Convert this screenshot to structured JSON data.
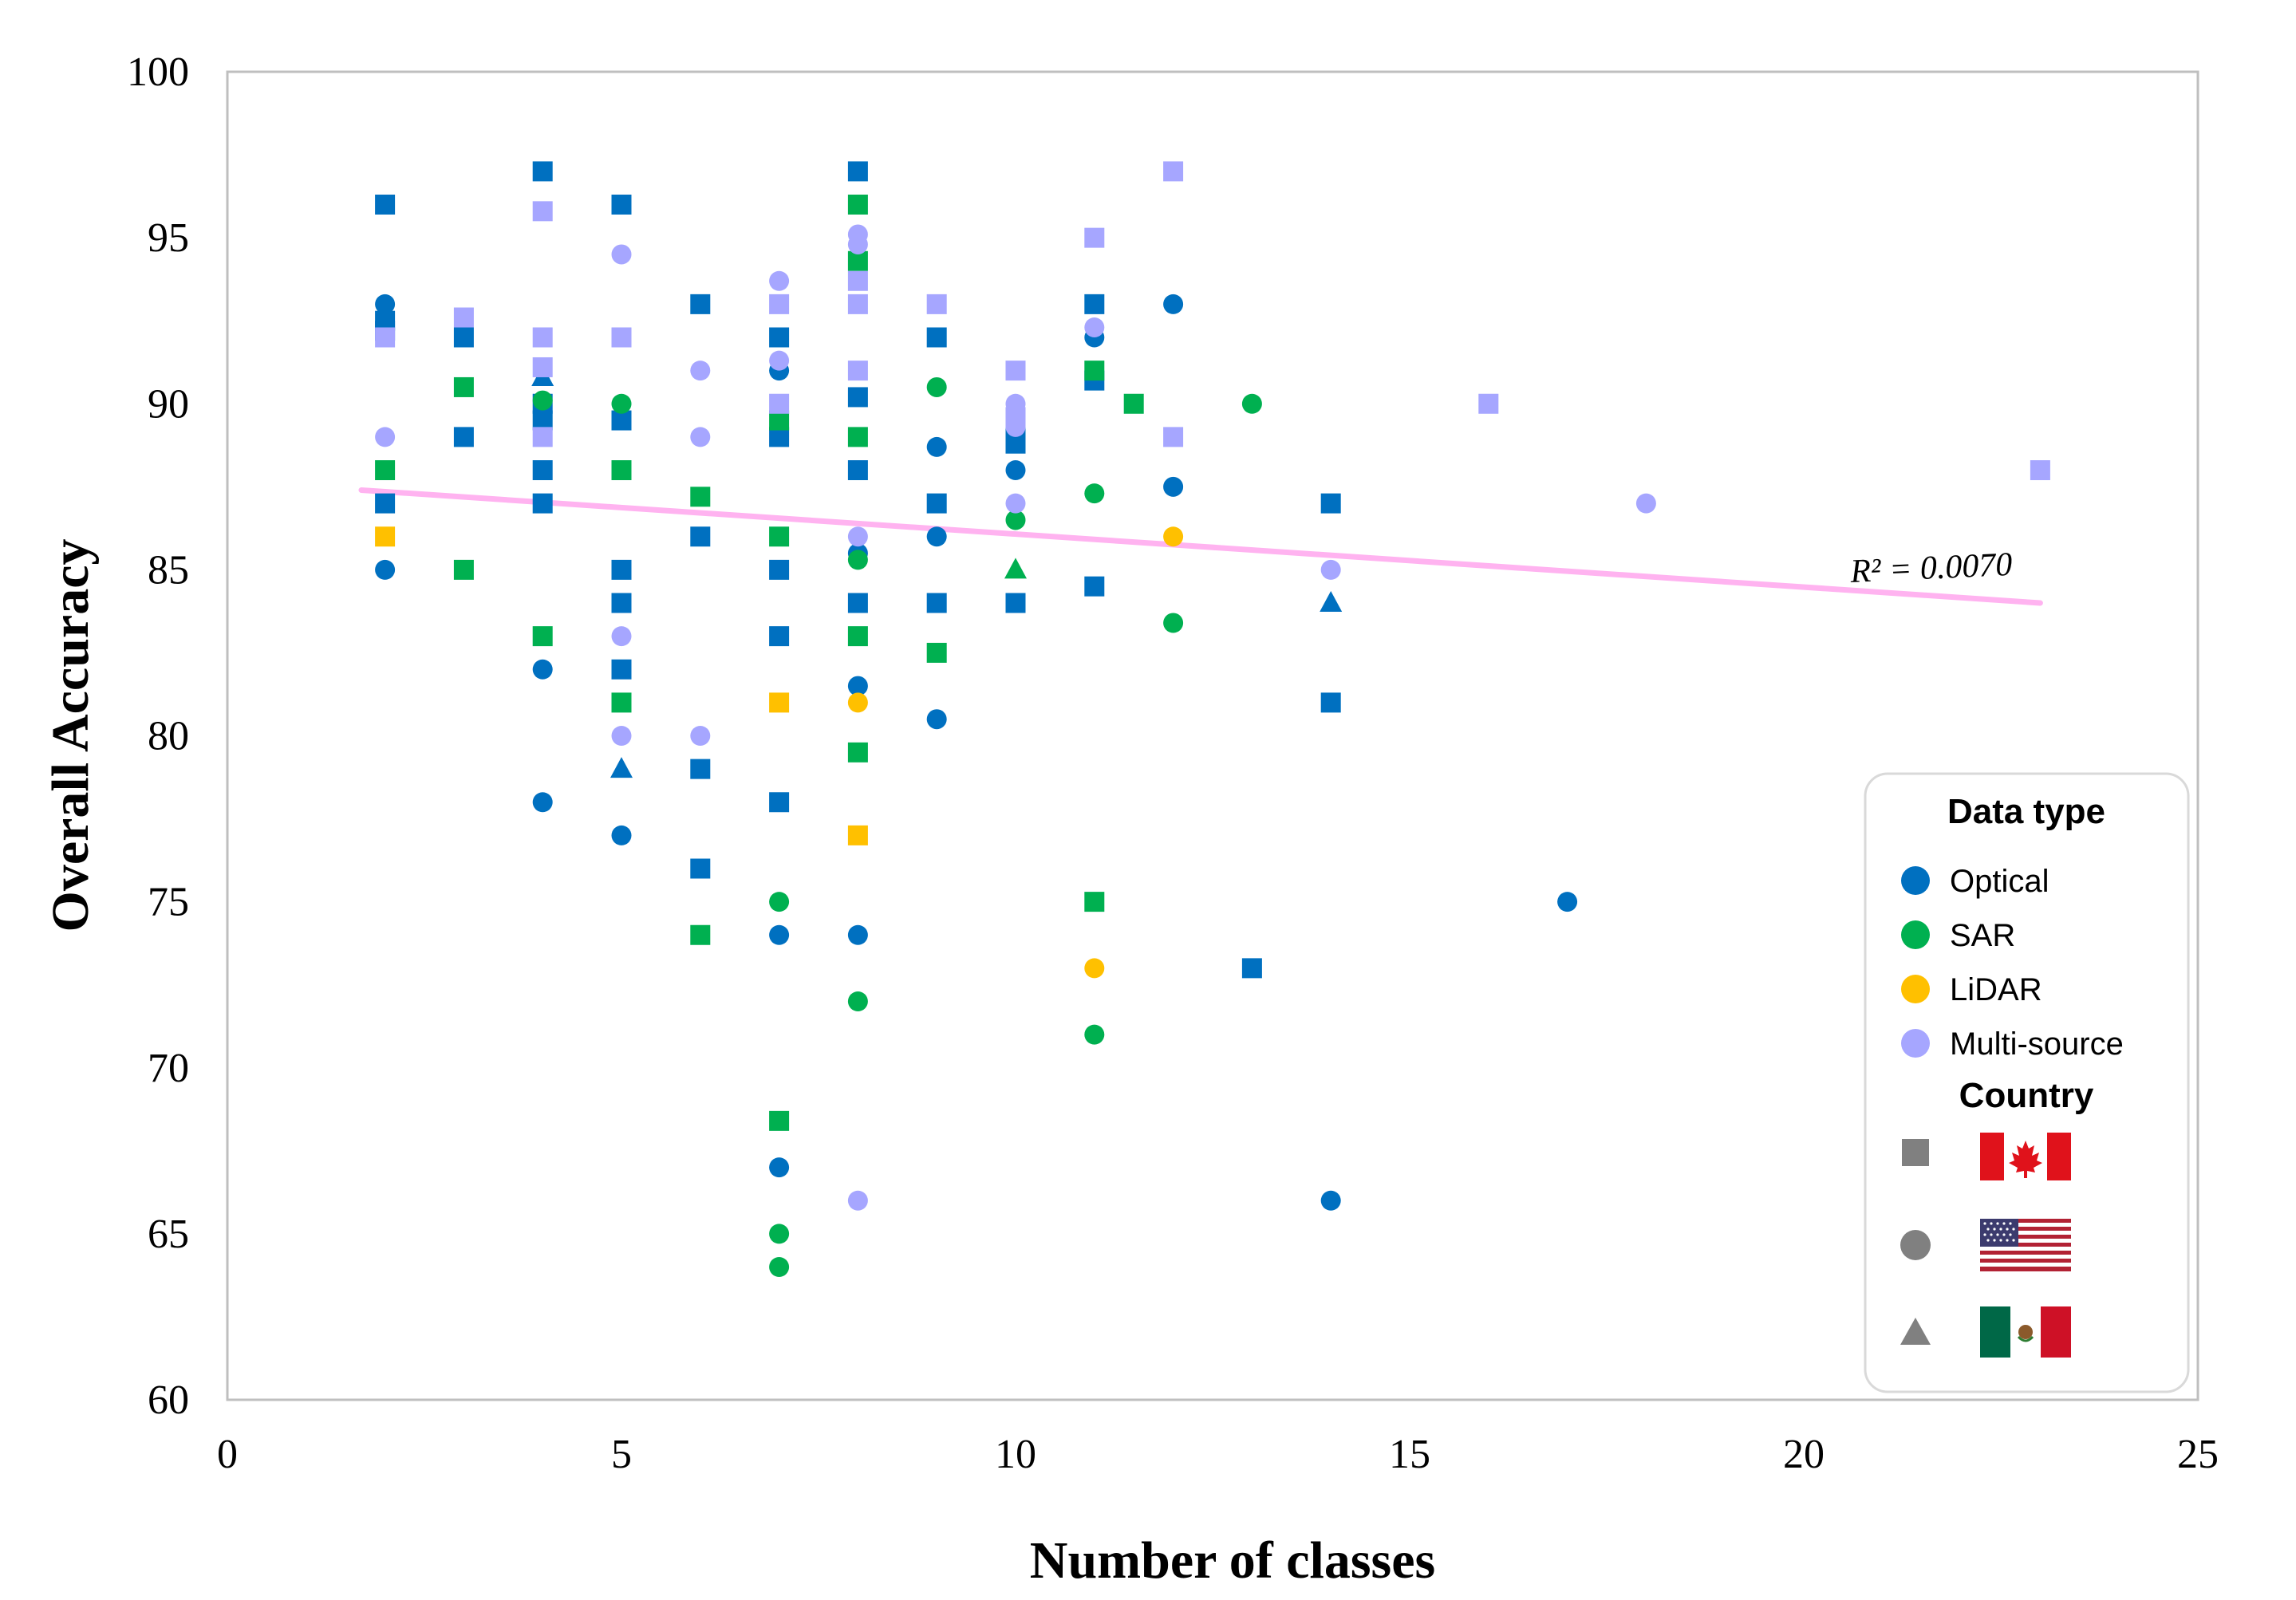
{
  "chart_data": {
    "type": "scatter",
    "xlabel": "Number of classes",
    "ylabel": "Overall Accuracy",
    "xlim": [
      0,
      25
    ],
    "ylim": [
      60,
      100
    ],
    "xticks": [
      0,
      5,
      10,
      15,
      20,
      25
    ],
    "yticks": [
      60,
      65,
      70,
      75,
      80,
      85,
      90,
      95,
      100
    ],
    "grid": false,
    "legend_position": "bottom-right",
    "legend": {
      "data_type_title": "Data type",
      "data_types": [
        {
          "label": "Optical",
          "color": "#0070C0"
        },
        {
          "label": "SAR",
          "color": "#00B050"
        },
        {
          "label": "LiDAR",
          "color": "#FFC000"
        },
        {
          "label": "Multi-source",
          "color": "#A6A6FF"
        }
      ],
      "country_title": "Country",
      "countries": [
        {
          "marker": "square",
          "flag": "canada-flag"
        },
        {
          "marker": "circle",
          "flag": "usa-flag"
        },
        {
          "marker": "triangle",
          "flag": "mexico-flag"
        }
      ]
    },
    "trendline": {
      "x": [
        1.7,
        23
      ],
      "y": [
        87.4,
        84.0
      ],
      "color": "#FFB3F0",
      "label": "R² = 0.0070"
    },
    "series": [
      {
        "name": "Optical",
        "color": "#0070C0",
        "points": [
          [
            2,
            96,
            "square"
          ],
          [
            2,
            92.5,
            "square"
          ],
          [
            2,
            92.2,
            "square"
          ],
          [
            2,
            87,
            "square"
          ],
          [
            2,
            93,
            "circle"
          ],
          [
            2,
            85,
            "circle"
          ],
          [
            3,
            92,
            "square"
          ],
          [
            3,
            89,
            "square"
          ],
          [
            4,
            97,
            "square"
          ],
          [
            4,
            90.8,
            "triangle"
          ],
          [
            4,
            90,
            "square"
          ],
          [
            4,
            89.5,
            "square"
          ],
          [
            4,
            88,
            "square"
          ],
          [
            4,
            87,
            "square"
          ],
          [
            4,
            82,
            "circle"
          ],
          [
            4,
            78,
            "circle"
          ],
          [
            5,
            96,
            "square"
          ],
          [
            5,
            89.5,
            "square"
          ],
          [
            5,
            85,
            "square"
          ],
          [
            5,
            84,
            "square"
          ],
          [
            5,
            82,
            "square"
          ],
          [
            5,
            79,
            "triangle"
          ],
          [
            5,
            77,
            "circle"
          ],
          [
            6,
            93,
            "square"
          ],
          [
            6,
            86,
            "square"
          ],
          [
            6,
            79,
            "square"
          ],
          [
            6,
            76,
            "square"
          ],
          [
            7,
            92,
            "square"
          ],
          [
            7,
            91,
            "circle"
          ],
          [
            7,
            89,
            "square"
          ],
          [
            7,
            85,
            "square"
          ],
          [
            7,
            83,
            "square"
          ],
          [
            7,
            78,
            "square"
          ],
          [
            7,
            74,
            "circle"
          ],
          [
            7,
            67,
            "circle"
          ],
          [
            8,
            97,
            "square"
          ],
          [
            8,
            90.2,
            "square"
          ],
          [
            8,
            88,
            "square"
          ],
          [
            8,
            85.5,
            "circle"
          ],
          [
            8,
            84,
            "square"
          ],
          [
            8,
            81.5,
            "circle"
          ],
          [
            8,
            74,
            "circle"
          ],
          [
            9,
            92,
            "square"
          ],
          [
            9,
            88.7,
            "circle"
          ],
          [
            9,
            87,
            "square"
          ],
          [
            9,
            86,
            "circle"
          ],
          [
            9,
            84,
            "square"
          ],
          [
            9,
            80.5,
            "circle"
          ],
          [
            10,
            89,
            "square"
          ],
          [
            10,
            88.8,
            "square"
          ],
          [
            10,
            88,
            "circle"
          ],
          [
            10,
            84,
            "square"
          ],
          [
            11,
            93,
            "square"
          ],
          [
            11,
            92,
            "circle"
          ],
          [
            11,
            90.7,
            "square"
          ],
          [
            11,
            84.5,
            "square"
          ],
          [
            12,
            93,
            "circle"
          ],
          [
            12,
            87.5,
            "circle"
          ],
          [
            13,
            73,
            "square"
          ],
          [
            14,
            87,
            "square"
          ],
          [
            14,
            84,
            "triangle"
          ],
          [
            14,
            81,
            "square"
          ],
          [
            14,
            66,
            "circle"
          ],
          [
            17,
            75,
            "circle"
          ]
        ]
      },
      {
        "name": "SAR",
        "color": "#00B050",
        "points": [
          [
            2,
            88,
            "square"
          ],
          [
            3,
            90.5,
            "square"
          ],
          [
            3,
            85,
            "square"
          ],
          [
            4,
            90.1,
            "circle"
          ],
          [
            4,
            83,
            "square"
          ],
          [
            5,
            90,
            "circle"
          ],
          [
            5,
            88,
            "square"
          ],
          [
            5,
            81,
            "square"
          ],
          [
            6,
            87.2,
            "square"
          ],
          [
            6,
            74,
            "square"
          ],
          [
            7,
            89.5,
            "square"
          ],
          [
            7,
            86,
            "square"
          ],
          [
            7,
            75,
            "circle"
          ],
          [
            7,
            68.4,
            "square"
          ],
          [
            7,
            65,
            "circle"
          ],
          [
            7,
            64,
            "circle"
          ],
          [
            8,
            96,
            "square"
          ],
          [
            8,
            94.3,
            "square"
          ],
          [
            8,
            89,
            "square"
          ],
          [
            8,
            85.3,
            "circle"
          ],
          [
            8,
            83,
            "square"
          ],
          [
            8,
            79.5,
            "square"
          ],
          [
            8,
            72,
            "circle"
          ],
          [
            9,
            90.5,
            "circle"
          ],
          [
            9,
            82.5,
            "square"
          ],
          [
            10,
            86.5,
            "circle"
          ],
          [
            10,
            85,
            "triangle"
          ],
          [
            11,
            91,
            "square"
          ],
          [
            11,
            87.3,
            "circle"
          ],
          [
            11,
            75,
            "square"
          ],
          [
            11,
            71,
            "circle"
          ],
          [
            11.5,
            90,
            "square"
          ],
          [
            12,
            83.4,
            "circle"
          ],
          [
            13,
            90,
            "circle"
          ]
        ]
      },
      {
        "name": "LiDAR",
        "color": "#FFC000",
        "points": [
          [
            2,
            86,
            "square"
          ],
          [
            7,
            81,
            "square"
          ],
          [
            8,
            81,
            "circle"
          ],
          [
            8,
            77,
            "square"
          ],
          [
            11,
            73,
            "circle"
          ],
          [
            12,
            86,
            "circle"
          ]
        ]
      },
      {
        "name": "Multi-source",
        "color": "#A6A6FF",
        "points": [
          [
            2,
            92,
            "square"
          ],
          [
            2,
            89,
            "circle"
          ],
          [
            3,
            92.6,
            "square"
          ],
          [
            4,
            95.8,
            "square"
          ],
          [
            4,
            92,
            "square"
          ],
          [
            4,
            91.1,
            "square"
          ],
          [
            4,
            89,
            "square"
          ],
          [
            5,
            94.5,
            "circle"
          ],
          [
            5,
            92,
            "square"
          ],
          [
            5,
            83,
            "circle"
          ],
          [
            5,
            80,
            "circle"
          ],
          [
            6,
            91,
            "circle"
          ],
          [
            6,
            89,
            "circle"
          ],
          [
            6,
            80,
            "circle"
          ],
          [
            7,
            93.7,
            "circle"
          ],
          [
            7,
            93,
            "square"
          ],
          [
            7,
            91.3,
            "circle"
          ],
          [
            7,
            90,
            "square"
          ],
          [
            8,
            95.1,
            "circle"
          ],
          [
            8,
            94.8,
            "circle"
          ],
          [
            8,
            93.7,
            "square"
          ],
          [
            8,
            93,
            "square"
          ],
          [
            8,
            91,
            "square"
          ],
          [
            8,
            86,
            "circle"
          ],
          [
            8,
            66,
            "circle"
          ],
          [
            9,
            93,
            "square"
          ],
          [
            10,
            91,
            "square"
          ],
          [
            10,
            90,
            "circle"
          ],
          [
            10,
            89.6,
            "square"
          ],
          [
            10,
            89.3,
            "circle"
          ],
          [
            10,
            87,
            "circle"
          ],
          [
            11,
            95,
            "square"
          ],
          [
            11,
            92.3,
            "circle"
          ],
          [
            12,
            97,
            "square"
          ],
          [
            12,
            89,
            "square"
          ],
          [
            14,
            85,
            "circle"
          ],
          [
            16,
            90,
            "square"
          ],
          [
            18,
            87,
            "circle"
          ],
          [
            23,
            88,
            "square"
          ]
        ]
      }
    ]
  }
}
